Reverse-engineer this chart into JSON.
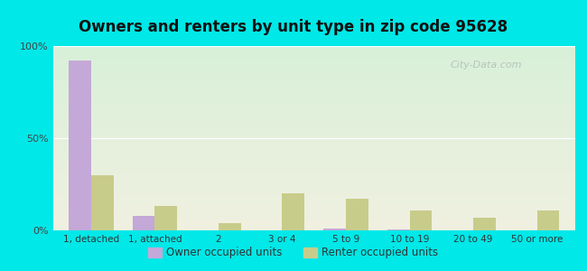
{
  "title": "Owners and renters by unit type in zip code 95628",
  "categories": [
    "1, detached",
    "1, attached",
    "2",
    "3 or 4",
    "5 to 9",
    "10 to 19",
    "20 to 49",
    "50 or more"
  ],
  "owner_values": [
    92,
    8,
    0,
    0,
    1,
    0.5,
    0,
    0
  ],
  "renter_values": [
    30,
    13,
    4,
    20,
    17,
    11,
    7,
    11
  ],
  "owner_color": "#c4a8d8",
  "renter_color": "#c8cc8a",
  "background_outer": "#00e8e8",
  "grad_top": "#d8f0d8",
  "grad_bottom": "#f0f0e0",
  "ylim": [
    0,
    100
  ],
  "yticks": [
    0,
    50,
    100
  ],
  "ytick_labels": [
    "0%",
    "50%",
    "100%"
  ],
  "legend_owner": "Owner occupied units",
  "legend_renter": "Renter occupied units",
  "title_fontsize": 12,
  "bar_width": 0.35,
  "watermark": "City-Data.com"
}
